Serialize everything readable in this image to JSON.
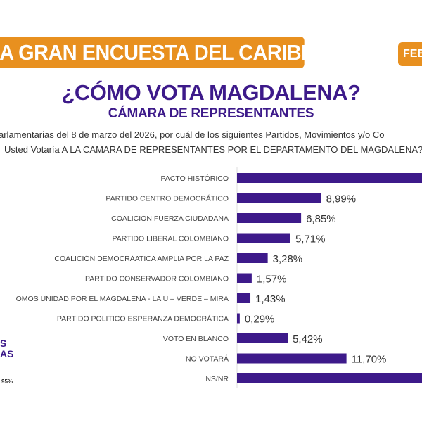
{
  "header": {
    "banner": "A GRAN ENCUESTA DEL CARIBE",
    "date_badge": "FEB",
    "title": "¿CÓMO VOTA MAGDALENA?",
    "subtitle": "CÁMARA DE REPRESENTANTES",
    "question_line1": "arlamentarias del 8 de marzo del 2026, por cuál de los siguientes Partidos, Movimientos y/o Co",
    "question_line2": "Usted Votaría A LA CAMARA DE REPRESENTANTES POR EL DEPARTAMENTO DEL MAGDALENA?"
  },
  "side": {
    "line1": "S",
    "line2": "AS",
    "note": "95%"
  },
  "colors": {
    "bar": "#3d1a8a",
    "accent": "#e8901f",
    "title": "#3d1a8a"
  },
  "chart_data": {
    "type": "bar",
    "orientation": "horizontal",
    "categories": [
      "PACTO HISTÓRICO",
      "PARTIDO CENTRO DEMOCRÁTICO",
      "COALICIÓN FUERZA CIUDADANA",
      "PARTIDO LIBERAL COLOMBIANO",
      "COALICIÓN DEMOCRÁATICA AMPLIA POR LA PAZ",
      "PARTIDO CONSERVADOR COLOMBIANO",
      "OMOS UNIDAD POR EL MAGDALENA - LA U – VERDE – MIRA",
      "PARTIDO POLITICO ESPERANZA DEMOCRÁTICA",
      "VOTO EN BLANCO",
      "NO VOTARÁ",
      "NS/NR"
    ],
    "values": [
      null,
      8.99,
      6.85,
      5.71,
      3.28,
      1.57,
      1.43,
      0.29,
      5.42,
      11.7,
      null
    ],
    "labels": [
      "",
      "8,99%",
      "6,85%",
      "5,71%",
      "3,28%",
      "1,57%",
      "1,43%",
      "0,29%",
      "5,42%",
      "11,70%",
      ""
    ],
    "unit": "%",
    "grid": false
  }
}
